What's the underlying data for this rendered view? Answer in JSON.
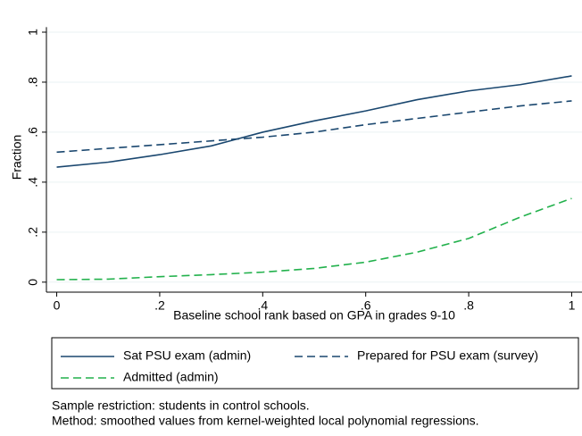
{
  "chart_data": {
    "type": "line",
    "x_label": "Baseline school rank based on GPA in grades 9-10",
    "y_label": "Fraction",
    "x": [
      0,
      0.1,
      0.2,
      0.3,
      0.4,
      0.5,
      0.6,
      0.7,
      0.8,
      0.9,
      1
    ],
    "series": [
      {
        "name": "Sat PSU exam (admin)",
        "color": "#1a476f",
        "dash": "solid",
        "values": [
          0.46,
          0.48,
          0.51,
          0.545,
          0.6,
          0.645,
          0.685,
          0.73,
          0.765,
          0.79,
          0.825
        ]
      },
      {
        "name": "Prepared for PSU exam (survey)",
        "color": "#1a476f",
        "dash": "dashed",
        "values": [
          0.52,
          0.535,
          0.55,
          0.565,
          0.58,
          0.6,
          0.63,
          0.655,
          0.68,
          0.705,
          0.725
        ]
      },
      {
        "name": "Admitted (admin)",
        "color": "#22b14c",
        "dash": "dashed",
        "values": [
          0.01,
          0.012,
          0.022,
          0.03,
          0.04,
          0.055,
          0.08,
          0.12,
          0.175,
          0.26,
          0.335
        ]
      }
    ],
    "xlim": [
      -0.02,
      1.02
    ],
    "ylim": [
      -0.04,
      1.02
    ],
    "xticks": [
      0,
      {
        "value": 0.2,
        "label": ".2"
      },
      {
        "value": 0.4,
        "label": ".4"
      },
      {
        "value": 0.6,
        "label": ".6"
      },
      {
        "value": 0.8,
        "label": ".8"
      },
      1
    ],
    "yticks": [
      0,
      {
        "value": 0.2,
        "label": ".2"
      },
      {
        "value": 0.4,
        "label": ".4"
      },
      {
        "value": 0.6,
        "label": ".6"
      },
      {
        "value": 0.8,
        "label": ".8"
      },
      1
    ],
    "grid": true,
    "legend_position": "bottom",
    "notes": [
      "Sample restriction: students in control schools.",
      "Method: smoothed values from kernel-weighted local polynomial regressions."
    ]
  }
}
